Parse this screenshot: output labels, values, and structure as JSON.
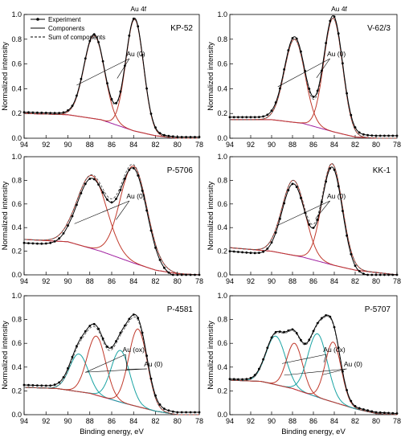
{
  "colors": {
    "experiment": "#000000",
    "component_au0": "#c0392b",
    "component_auox": "#1aa3a3",
    "background": "#a020a0",
    "sum": "#555555",
    "envelope_fit": "#8b2e2e"
  },
  "legend": {
    "experiment": "Experiment",
    "components": "Components",
    "sum": "Sum of components"
  },
  "axis_labels": {
    "ylabel": "Normalized intensity",
    "xlabel": "Binding energy, eV"
  },
  "chart_data": [
    {
      "type": "line",
      "sample": "KP-52",
      "title": "KP-52",
      "annotations": [
        "Au 4f",
        "Au (0)"
      ],
      "xlim": [
        94,
        78
      ],
      "ylim": [
        0.0,
        1.0
      ],
      "xticks": [
        94,
        92,
        90,
        88,
        86,
        84,
        82,
        80,
        78
      ],
      "yticks": [
        0.0,
        0.2,
        0.4,
        0.6,
        0.8,
        1.0
      ],
      "background": [
        [
          94,
          0.2
        ],
        [
          90,
          0.19
        ],
        [
          87,
          0.15
        ],
        [
          84,
          0.06
        ],
        [
          82,
          0.02
        ],
        [
          80,
          0.0
        ],
        [
          78,
          0.0
        ]
      ],
      "peaks": [
        {
          "type": "au0",
          "center": 87.6,
          "height": 0.83,
          "fwhm": 2.2
        },
        {
          "type": "au0",
          "center": 83.9,
          "height": 0.96,
          "fwhm": 1.9
        }
      ],
      "experiment_offset": 0.01
    },
    {
      "type": "line",
      "sample": "V-62/3",
      "title": "V-62/3",
      "annotations": [
        "Au 4f",
        "Au (0)"
      ],
      "xlim": [
        94,
        78
      ],
      "ylim": [
        0.0,
        1.0
      ],
      "xticks": [
        94,
        92,
        90,
        88,
        86,
        84,
        82,
        80,
        78
      ],
      "yticks": [
        0.0,
        0.2,
        0.4,
        0.6,
        0.8,
        1.0
      ],
      "background": [
        [
          94,
          0.15
        ],
        [
          90,
          0.15
        ],
        [
          87,
          0.12
        ],
        [
          84,
          0.05
        ],
        [
          82,
          0.01
        ],
        [
          80,
          0.0
        ],
        [
          78,
          0.0
        ]
      ],
      "peaks": [
        {
          "type": "au0",
          "center": 87.8,
          "height": 0.8,
          "fwhm": 2.3
        },
        {
          "type": "au0",
          "center": 84.1,
          "height": 0.97,
          "fwhm": 2.1
        }
      ],
      "experiment_offset": 0.02
    },
    {
      "type": "line",
      "sample": "P-5706",
      "title": "P-5706",
      "annotations": [
        "Au (0)"
      ],
      "xlim": [
        94,
        78
      ],
      "ylim": [
        0.0,
        1.0
      ],
      "xticks": [
        94,
        92,
        90,
        88,
        86,
        84,
        82,
        80,
        78
      ],
      "yticks": [
        0.0,
        0.2,
        0.4,
        0.6,
        0.8,
        1.0
      ],
      "background": [
        [
          94,
          0.3
        ],
        [
          90,
          0.28
        ],
        [
          87,
          0.2
        ],
        [
          84,
          0.1
        ],
        [
          82,
          0.04
        ],
        [
          80,
          0.01
        ],
        [
          78,
          0.0
        ]
      ],
      "peaks": [
        {
          "type": "au0",
          "center": 87.8,
          "height": 0.84,
          "fwhm": 3.2
        },
        {
          "type": "au0",
          "center": 84.0,
          "height": 0.92,
          "fwhm": 2.9
        }
      ],
      "experiment_offset": -0.03
    },
    {
      "type": "line",
      "sample": "KK-1",
      "title": "KK-1",
      "annotations": [
        "Au (0)"
      ],
      "xlim": [
        94,
        78
      ],
      "ylim": [
        0.0,
        1.0
      ],
      "xticks": [
        94,
        92,
        90,
        88,
        86,
        84,
        82,
        80,
        78
      ],
      "yticks": [
        0.0,
        0.2,
        0.4,
        0.6,
        0.8,
        1.0
      ],
      "background": [
        [
          94,
          0.23
        ],
        [
          90,
          0.2
        ],
        [
          87,
          0.15
        ],
        [
          84,
          0.08
        ],
        [
          82,
          0.04
        ],
        [
          80,
          0.02
        ],
        [
          78,
          0.0
        ]
      ],
      "peaks": [
        {
          "type": "au0",
          "center": 87.9,
          "height": 0.8,
          "fwhm": 2.6
        },
        {
          "type": "au0",
          "center": 84.2,
          "height": 0.94,
          "fwhm": 2.3
        }
      ],
      "experiment_offset": -0.03
    },
    {
      "type": "line",
      "sample": "P-4581",
      "title": "P-4581",
      "annotations": [
        "Au (ox)",
        "Au (0)"
      ],
      "xlim": [
        94,
        78
      ],
      "ylim": [
        0.0,
        1.0
      ],
      "xticks": [
        94,
        92,
        90,
        88,
        86,
        84,
        82,
        80,
        78
      ],
      "yticks": [
        0.0,
        0.2,
        0.4,
        0.6,
        0.8,
        1.0
      ],
      "background": [
        [
          94,
          0.23
        ],
        [
          91,
          0.22
        ],
        [
          88,
          0.18
        ],
        [
          85,
          0.1
        ],
        [
          82,
          0.03
        ],
        [
          80,
          0.0
        ],
        [
          78,
          0.0
        ]
      ],
      "peaks": [
        {
          "type": "auox",
          "center": 89.0,
          "height": 0.51,
          "fwhm": 2.0
        },
        {
          "type": "au0",
          "center": 87.4,
          "height": 0.66,
          "fwhm": 2.0
        },
        {
          "type": "auox",
          "center": 85.2,
          "height": 0.54,
          "fwhm": 2.0
        },
        {
          "type": "au0",
          "center": 83.6,
          "height": 0.72,
          "fwhm": 2.0
        }
      ],
      "experiment_offset": 0.02
    },
    {
      "type": "line",
      "sample": "P-5707",
      "title": "P-5707",
      "annotations": [
        "Au (ox)",
        "Au (0)"
      ],
      "xlim": [
        94,
        78
      ],
      "ylim": [
        0.0,
        1.0
      ],
      "xticks": [
        94,
        92,
        90,
        88,
        86,
        84,
        82,
        80,
        78
      ],
      "yticks": [
        0.0,
        0.2,
        0.4,
        0.6,
        0.8,
        1.0
      ],
      "background": [
        [
          94,
          0.29
        ],
        [
          91,
          0.28
        ],
        [
          88,
          0.22
        ],
        [
          85,
          0.13
        ],
        [
          82,
          0.05
        ],
        [
          80,
          0.01
        ],
        [
          78,
          0.0
        ]
      ],
      "peaks": [
        {
          "type": "auox",
          "center": 89.6,
          "height": 0.66,
          "fwhm": 2.2
        },
        {
          "type": "au0",
          "center": 87.8,
          "height": 0.6,
          "fwhm": 1.8
        },
        {
          "type": "auox",
          "center": 85.6,
          "height": 0.68,
          "fwhm": 2.2
        },
        {
          "type": "au0",
          "center": 84.1,
          "height": 0.61,
          "fwhm": 1.8
        }
      ],
      "experiment_offset": 0.01
    }
  ]
}
